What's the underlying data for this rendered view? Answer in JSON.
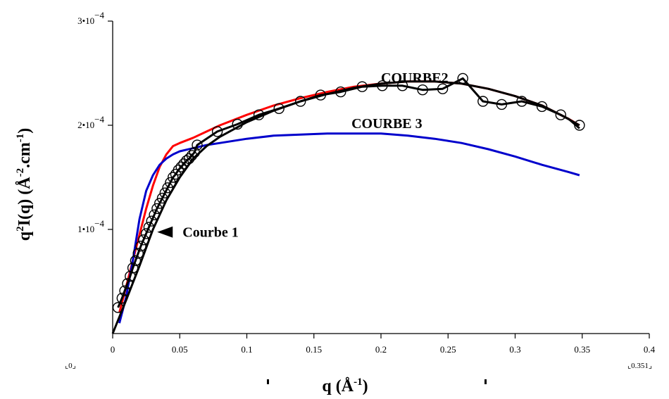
{
  "chart_data": {
    "type": "line",
    "xlabel": {
      "base": "q (Å",
      "sup": "-1",
      "end": ")"
    },
    "ylabel": {
      "p1": "q",
      "s1": "2",
      "p2": "I(q) (Å",
      "s2": "-2",
      "p3": ".cm",
      "s3": "-1",
      "p4": ")"
    },
    "xlim": [
      0,
      0.4
    ],
    "ylim": [
      0,
      0.0003
    ],
    "xticks": [
      {
        "v": 0,
        "label": "0"
      },
      {
        "v": 0.05,
        "label": "0.05"
      },
      {
        "v": 0.1,
        "label": "0.1"
      },
      {
        "v": 0.15,
        "label": "0.15"
      },
      {
        "v": 0.2,
        "label": "0.2"
      },
      {
        "v": 0.25,
        "label": "0.25"
      },
      {
        "v": 0.3,
        "label": "0.3"
      },
      {
        "v": 0.35,
        "label": "0.35"
      },
      {
        "v": 0.4,
        "label": "0.4"
      }
    ],
    "yticks": [
      {
        "v": 0.0001,
        "mant": "1•10",
        "exp": "−4"
      },
      {
        "v": 0.0002,
        "mant": "2•10",
        "exp": "−4"
      },
      {
        "v": 0.0003,
        "mant": "3•10",
        "exp": "−4"
      }
    ],
    "corner_labels": {
      "left": "0",
      "right": "0.351"
    },
    "annotations": [
      {
        "text": "COURBE2",
        "x": 0.2,
        "y": 0.000246
      },
      {
        "text": "COURBE 3",
        "x": 0.178,
        "y": 0.000202
      },
      {
        "text": "Courbe 1",
        "x": 0.05,
        "y": 9.75e-05,
        "arrow": true
      }
    ],
    "series": [
      {
        "color": "#ff0000",
        "x": [
          0.005,
          0.01,
          0.015,
          0.02,
          0.025,
          0.03,
          0.035,
          0.04,
          0.045,
          0.05,
          0.06,
          0.07,
          0.08,
          0.1,
          0.12,
          0.14,
          0.16,
          0.18,
          0.2,
          0.22,
          0.24,
          0.26,
          0.28,
          0.3,
          0.32,
          0.34,
          0.348
        ],
        "y": [
          2e-05,
          4.5e-05,
          7e-05,
          9.5e-05,
          0.00012,
          0.000142,
          0.00016,
          0.000172,
          0.00018,
          0.000183,
          0.000188,
          0.000194,
          0.0002,
          0.00021,
          0.000219,
          0.000226,
          0.000232,
          0.000237,
          0.00024,
          0.000242,
          0.000242,
          0.00024,
          0.000235,
          0.000228,
          0.000219,
          0.000206,
          0.0002
        ]
      },
      {
        "color": "#0000cc",
        "x": [
          0.005,
          0.01,
          0.015,
          0.02,
          0.025,
          0.03,
          0.035,
          0.04,
          0.045,
          0.05,
          0.06,
          0.07,
          0.08,
          0.1,
          0.12,
          0.14,
          0.16,
          0.18,
          0.2,
          0.22,
          0.24,
          0.26,
          0.28,
          0.3,
          0.32,
          0.34,
          0.348
        ],
        "y": [
          1e-05,
          3.5e-05,
          7e-05,
          0.00011,
          0.000137,
          0.000152,
          0.000162,
          0.000168,
          0.000172,
          0.000175,
          0.000178,
          0.000181,
          0.000183,
          0.000187,
          0.00019,
          0.000191,
          0.000192,
          0.000192,
          0.000192,
          0.00019,
          0.000187,
          0.000183,
          0.000177,
          0.00017,
          0.000162,
          0.000155,
          0.000152
        ]
      },
      {
        "color": "#000000",
        "x": [
          0,
          0.01,
          0.02,
          0.03,
          0.04,
          0.05,
          0.06,
          0.07,
          0.08,
          0.1,
          0.12,
          0.14,
          0.16,
          0.18,
          0.2,
          0.22,
          0.24,
          0.26,
          0.28,
          0.3,
          0.32,
          0.34,
          0.348
        ],
        "y": [
          0,
          3.2e-05,
          6.5e-05,
          0.0001,
          0.000128,
          0.00015,
          0.000168,
          0.00018,
          0.000189,
          0.000203,
          0.000214,
          0.000223,
          0.00023,
          0.000236,
          0.00024,
          0.000242,
          0.000242,
          0.00024,
          0.000235,
          0.000228,
          0.000219,
          0.000206,
          0.000197
        ]
      },
      {
        "color": "#000000",
        "marker": "circle",
        "x": [
          0.004,
          0.007,
          0.009,
          0.011,
          0.013,
          0.015,
          0.017,
          0.019,
          0.021,
          0.023,
          0.025,
          0.027,
          0.029,
          0.031,
          0.033,
          0.035,
          0.037,
          0.039,
          0.041,
          0.043,
          0.045,
          0.047,
          0.049,
          0.051,
          0.053,
          0.055,
          0.057,
          0.059,
          0.061,
          0.063,
          0.078,
          0.093,
          0.109,
          0.124,
          0.14,
          0.155,
          0.17,
          0.186,
          0.201,
          0.216,
          0.231,
          0.246,
          0.261,
          0.276,
          0.29,
          0.305,
          0.32,
          0.334,
          0.348
        ],
        "y": [
          2.5e-05,
          3.4e-05,
          4.1e-05,
          4.8e-05,
          5.5e-05,
          6.3e-05,
          7e-05,
          7.7e-05,
          8.4e-05,
          9e-05,
          9.6e-05,
          0.000102,
          0.000108,
          0.000114,
          0.00012,
          0.000125,
          0.00013,
          0.000135,
          0.00014,
          0.000145,
          0.00015,
          0.000153,
          0.000157,
          0.00016,
          0.000163,
          0.000166,
          0.000168,
          0.000171,
          0.000174,
          0.000181,
          0.000194,
          0.000201,
          0.00021,
          0.000216,
          0.000223,
          0.000229,
          0.000232,
          0.000237,
          0.000238,
          0.000238,
          0.000234,
          0.000235,
          0.000245,
          0.000223,
          0.00022,
          0.000223,
          0.000218,
          0.00021,
          0.0002
        ]
      }
    ]
  }
}
